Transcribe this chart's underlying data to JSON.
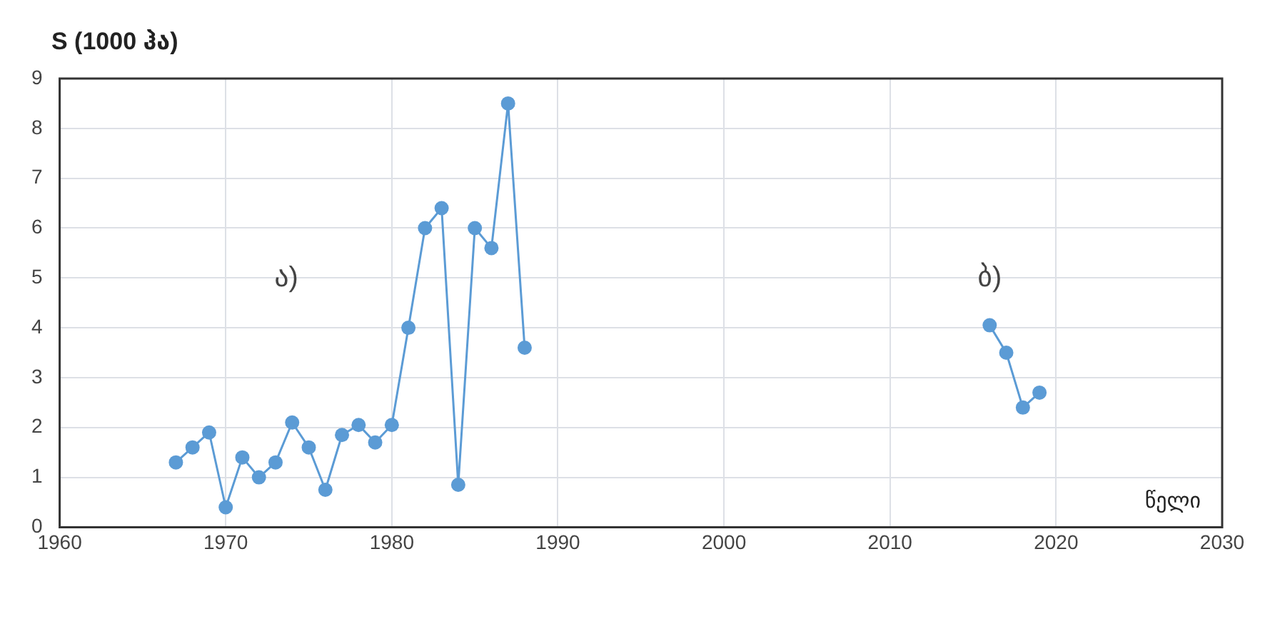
{
  "chart_data": {
    "type": "line",
    "ylabel": "S (1000 ჰა)",
    "xlabel": "წელი",
    "series": [
      {
        "color": "#5b9bd5",
        "x": [
          1967,
          1968,
          1969,
          1970,
          1971,
          1972,
          1973,
          1974,
          1975,
          1976,
          1977,
          1978,
          1979,
          1980,
          1981,
          1982,
          1983,
          1984,
          1985,
          1986,
          1987,
          1988
        ],
        "values": [
          1.3,
          1.6,
          1.9,
          0.4,
          1.4,
          1.0,
          1.3,
          2.1,
          1.6,
          0.75,
          1.85,
          2.05,
          1.7,
          2.05,
          4.0,
          6.0,
          6.4,
          0.85,
          6.0,
          5.6,
          8.5,
          3.6
        ]
      },
      {
        "color": "#5b9bd5",
        "x": [
          2016,
          2017,
          2018,
          2019
        ],
        "values": [
          4.05,
          3.5,
          2.4,
          2.7
        ]
      }
    ],
    "annotations": [
      "ა)",
      "ბ)"
    ],
    "xlim": [
      1960,
      2030
    ],
    "xticks": [
      1960,
      1970,
      1980,
      1990,
      2000,
      2010,
      2020,
      2030
    ],
    "ylim": [
      0,
      9
    ],
    "yticks": [
      0,
      1,
      2,
      3,
      4,
      5,
      6,
      7,
      8,
      9
    ],
    "grid": true,
    "legend": false,
    "marker": "circle",
    "line_style": "solid"
  }
}
